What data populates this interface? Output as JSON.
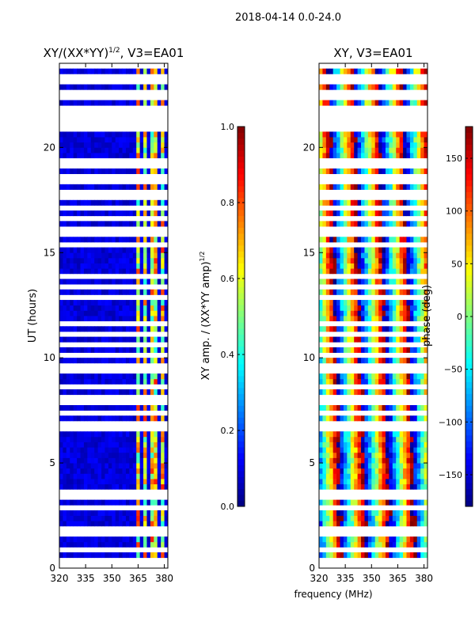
{
  "figure": {
    "suptitle": "2018-04-14 0.0-24.0",
    "xlabel_shared": "frequency (MHz)",
    "colors": {
      "background": "#ffffff",
      "axis": "#000000",
      "jet_dark_blue": "#00008f",
      "jet_dark_red": "#800000"
    }
  },
  "chart_data": [
    {
      "type": "heatmap",
      "title": "XY/(XX*YY)",
      "title_superscript": "1/2",
      "title_suffix": ", V3=EA01",
      "xlabel": "",
      "ylabel": "UT (hours)",
      "xlim": [
        320,
        382
      ],
      "ylim": [
        0,
        24
      ],
      "xticks": [
        320,
        335,
        350,
        365,
        380
      ],
      "yticks": [
        0,
        5,
        10,
        15,
        20
      ],
      "colormap": "jet",
      "colorbar": {
        "label": "XY amp. / (XX*YY amp)",
        "label_superscript": "1/2",
        "range": [
          0.0,
          1.0
        ],
        "ticks": [
          "0.0",
          "0.2",
          "0.4",
          "0.6",
          "0.8",
          "1.0"
        ],
        "tick_values": [
          0.0,
          0.2,
          0.4,
          0.6,
          0.8,
          1.0
        ]
      },
      "flagged_times_hours": [
        0.2,
        0.45,
        0.8,
        1.55,
        1.9,
        2.9,
        3.4,
        3.65,
        6.65,
        6.95,
        7.3,
        7.75,
        8.2,
        8.55,
        9.3,
        9.6,
        10.2,
        10.5,
        11.2,
        11.5,
        12.9,
        13.4,
        13.95,
        15.35,
        15.8,
        16.2,
        16.55,
        17.1,
        17.5,
        17.85,
        18.3,
        18.7,
        19.1,
        19.35,
        20.75,
        21.15,
        21.35,
        21.6,
        21.9,
        22.3,
        22.6,
        23.0,
        23.45,
        23.75
      ],
      "rfi_bands_mhz": [
        [
          364,
          366
        ],
        [
          369,
          370.5
        ],
        [
          371.5,
          373
        ],
        [
          375,
          376.5
        ],
        [
          378.5,
          380.5
        ]
      ],
      "typical_values": {
        "clean_band": 0.05,
        "rfi_band_low": 0.4,
        "rfi_band_high": 0.85
      }
    },
    {
      "type": "heatmap",
      "title": "XY, V3=EA01",
      "xlabel": "frequency (MHz)",
      "ylabel": "",
      "xlim": [
        320,
        382
      ],
      "ylim": [
        0,
        24
      ],
      "xticks": [
        320,
        335,
        350,
        365,
        380
      ],
      "yticks": [
        0,
        5,
        10,
        15,
        20
      ],
      "colormap": "jet",
      "colorbar": {
        "label": "phase (deg)",
        "range": [
          -180,
          180
        ],
        "ticks": [
          "150",
          "100",
          "50",
          "0",
          "−50",
          "−100",
          "−150"
        ],
        "tick_values": [
          150,
          100,
          50,
          0,
          -50,
          -100,
          -150
        ]
      },
      "flagged_times_hours": [
        0.2,
        0.45,
        0.8,
        1.55,
        1.9,
        2.9,
        3.4,
        3.65,
        6.65,
        6.95,
        7.3,
        7.75,
        8.2,
        8.55,
        9.3,
        9.6,
        10.2,
        10.5,
        11.2,
        11.5,
        12.9,
        13.4,
        13.95,
        15.35,
        15.8,
        16.2,
        16.55,
        17.1,
        17.5,
        17.85,
        18.3,
        18.7,
        19.1,
        19.35,
        20.75,
        21.15,
        21.35,
        21.6,
        21.9,
        22.3,
        22.6,
        23.0,
        23.45,
        23.75
      ],
      "phase_wrap_period_mhz": 14,
      "phase_drift_deg_per_hour": 8
    }
  ]
}
